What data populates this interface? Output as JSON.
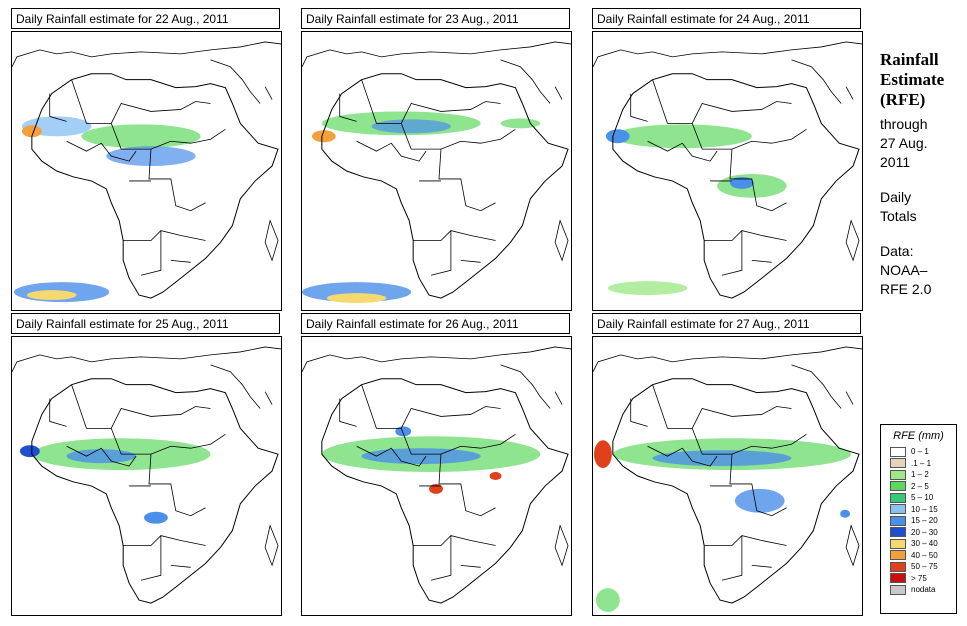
{
  "panels": [
    {
      "title": "Daily Rainfall estimate for  22 Aug., 2011"
    },
    {
      "title": "Daily Rainfall estimate for  23 Aug., 2011"
    },
    {
      "title": "Daily Rainfall estimate for  24 Aug., 2011"
    },
    {
      "title": "Daily Rainfall estimate for  25 Aug., 2011"
    },
    {
      "title": "Daily Rainfall estimate for  26 Aug., 2011"
    },
    {
      "title": "Daily Rainfall estimate for  27 Aug., 2011"
    }
  ],
  "sidebar": {
    "heading_line1": "Rainfall",
    "heading_line2": "Estimate",
    "heading_line3": "(RFE)",
    "through_label": "through",
    "through_date_line1": "27 Aug.",
    "through_date_line2": "2011",
    "daily_line1": "Daily",
    "daily_line2": "Totals",
    "data_label": "Data:",
    "data_source_line1": "NOAA–",
    "data_source_line2": "RFE 2.0"
  },
  "legend": {
    "title": "RFE (mm)",
    "items": [
      {
        "label": "0 – 1",
        "color": "#ffffff"
      },
      {
        "label": ".1 – 1",
        "color": "#e5d3bc"
      },
      {
        "label": "1 – 2",
        "color": "#9fe88a"
      },
      {
        "label": "2 – 5",
        "color": "#5fd85f"
      },
      {
        "label": "5 – 10",
        "color": "#38c87a"
      },
      {
        "label": "10 – 15",
        "color": "#8cc2f2"
      },
      {
        "label": "15 – 20",
        "color": "#4a8fe8"
      },
      {
        "label": "20 – 30",
        "color": "#1f4fcf"
      },
      {
        "label": "30 – 40",
        "color": "#f5d870"
      },
      {
        "label": "40 – 50",
        "color": "#f2a03c"
      },
      {
        "label": "50 – 75",
        "color": "#e0401c"
      },
      {
        "label": "> 75",
        "color": "#c81010"
      },
      {
        "label": "nodata",
        "color": "#c8c8c8"
      }
    ]
  }
}
